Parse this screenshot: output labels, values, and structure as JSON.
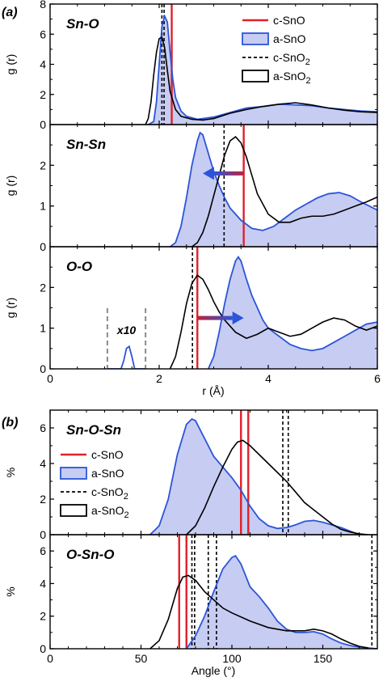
{
  "colors": {
    "c_SnO": "#e0202a",
    "a_SnO_line": "#2b55d9",
    "a_SnO_fill": "#c7ccf2",
    "c_SnO2": "#000000",
    "a_SnO2": "#000000",
    "inset": "#8a8a8a",
    "arrow": "#2b55d9",
    "arrow_tail": "#c0203a"
  },
  "chart_data": [
    {
      "type": "line",
      "panel_label": "(a)",
      "xlabel": "r (Å)",
      "ylabel": "g (r)",
      "xlim": [
        0,
        6
      ],
      "xticks": [
        "0",
        "2",
        "4",
        "6"
      ],
      "legend": {
        "placement": "top-right",
        "entries": [
          "c-SnO",
          "a-SnO",
          "c-SnO₂",
          "a-SnO₂"
        ]
      },
      "subplots": [
        {
          "title": "Sn-O",
          "ylim": [
            0,
            8
          ],
          "yticks": [
            "0",
            "2",
            "4",
            "6",
            "8"
          ],
          "vlines": {
            "c-SnO": [
              2.23
            ],
            "c-SnO₂": [
              2.05,
              2.09
            ]
          },
          "series": [
            {
              "name": "a-SnO",
              "fill": true,
              "x": [
                1.8,
                1.9,
                1.95,
                2.0,
                2.05,
                2.1,
                2.15,
                2.2,
                2.25,
                2.3,
                2.4,
                2.5,
                2.7,
                3.0,
                3.3,
                3.6,
                3.9,
                4.2,
                4.5,
                4.8,
                5.1,
                5.4,
                5.7,
                6.0
              ],
              "y": [
                0,
                0.2,
                1.5,
                4.0,
                6.5,
                7.2,
                6.8,
                4.8,
                3.0,
                1.8,
                0.9,
                0.55,
                0.35,
                0.5,
                0.8,
                1.1,
                1.2,
                1.35,
                1.3,
                1.25,
                1.1,
                1.0,
                0.9,
                0.85
              ]
            },
            {
              "name": "a-SnO₂",
              "fill": false,
              "x": [
                1.75,
                1.8,
                1.85,
                1.9,
                1.95,
                2.0,
                2.05,
                2.1,
                2.15,
                2.2,
                2.3,
                2.4,
                2.6,
                2.8,
                3.0,
                3.3,
                3.6,
                3.9,
                4.2,
                4.5,
                4.8,
                5.1,
                5.4,
                5.7,
                6.0
              ],
              "y": [
                0,
                0.4,
                1.5,
                3.3,
                4.8,
                5.7,
                5.8,
                5.1,
                3.6,
                2.2,
                1.0,
                0.55,
                0.35,
                0.3,
                0.4,
                0.75,
                1.0,
                1.2,
                1.35,
                1.45,
                1.3,
                1.1,
                0.95,
                0.85,
                0.8
              ]
            }
          ]
        },
        {
          "title": "Sn-Sn",
          "ylim": [
            0,
            3
          ],
          "yticks": [
            "0",
            "1",
            "2"
          ],
          "vlines": {
            "c-SnO": [
              3.55
            ],
            "c-SnO₂": [
              3.19
            ]
          },
          "arrow": {
            "from": 3.55,
            "to": 2.8,
            "y": 1.8
          },
          "series": [
            {
              "name": "a-SnO",
              "fill": true,
              "x": [
                2.2,
                2.3,
                2.4,
                2.5,
                2.6,
                2.7,
                2.75,
                2.8,
                2.9,
                3.0,
                3.1,
                3.2,
                3.3,
                3.5,
                3.7,
                3.9,
                4.1,
                4.3,
                4.5,
                4.7,
                4.9,
                5.1,
                5.3,
                5.5,
                5.7,
                6.0
              ],
              "y": [
                0,
                0.1,
                0.5,
                1.2,
                2.0,
                2.6,
                2.8,
                2.75,
                2.3,
                1.85,
                1.5,
                1.2,
                0.95,
                0.65,
                0.45,
                0.4,
                0.5,
                0.7,
                0.9,
                1.05,
                1.2,
                1.3,
                1.33,
                1.25,
                1.1,
                0.9
              ]
            },
            {
              "name": "a-SnO₂",
              "fill": false,
              "x": [
                2.6,
                2.7,
                2.8,
                2.9,
                3.0,
                3.1,
                3.2,
                3.3,
                3.4,
                3.5,
                3.6,
                3.7,
                3.8,
                4.0,
                4.2,
                4.4,
                4.6,
                4.8,
                5.0,
                5.2,
                5.4,
                5.6,
                5.8,
                6.0
              ],
              "y": [
                0,
                0.1,
                0.35,
                0.75,
                1.25,
                1.75,
                2.25,
                2.6,
                2.7,
                2.55,
                2.2,
                1.75,
                1.3,
                0.8,
                0.6,
                0.6,
                0.7,
                0.75,
                0.75,
                0.8,
                0.9,
                1.0,
                1.1,
                1.22
              ]
            }
          ]
        },
        {
          "title": "O-O",
          "ylim": [
            0,
            3
          ],
          "yticks": [
            "0",
            "1",
            "2"
          ],
          "vlines": {
            "c-SnO": [
              2.7
            ],
            "c-SnO₂": [
              2.61
            ]
          },
          "arrow": {
            "from": 2.7,
            "to": 3.55,
            "y": 1.25
          },
          "inset": {
            "label": "x10",
            "x": [
              1.05,
              1.75
            ]
          },
          "series": [
            {
              "name": "a-SnO",
              "fill": true,
              "x": [
                2.9,
                3.0,
                3.1,
                3.2,
                3.3,
                3.4,
                3.45,
                3.5,
                3.6,
                3.7,
                3.8,
                3.9,
                4.0,
                4.2,
                4.4,
                4.6,
                4.8,
                5.0,
                5.2,
                5.4,
                5.6,
                5.8,
                6.0
              ],
              "y": [
                0,
                0.3,
                0.9,
                1.6,
                2.2,
                2.65,
                2.75,
                2.65,
                2.2,
                1.8,
                1.5,
                1.2,
                1.0,
                0.8,
                0.6,
                0.5,
                0.45,
                0.5,
                0.65,
                0.8,
                0.95,
                1.1,
                1.15
              ]
            },
            {
              "name": "a-SnO₂",
              "fill": false,
              "x": [
                2.2,
                2.3,
                2.4,
                2.5,
                2.6,
                2.7,
                2.8,
                2.9,
                3.0,
                3.1,
                3.2,
                3.4,
                3.6,
                3.8,
                4.0,
                4.2,
                4.4,
                4.6,
                4.8,
                5.0,
                5.2,
                5.4,
                5.6,
                5.8,
                6.0
              ],
              "y": [
                0,
                0.3,
                0.9,
                1.6,
                2.1,
                2.3,
                2.2,
                1.95,
                1.65,
                1.4,
                1.2,
                0.9,
                0.75,
                0.85,
                1.0,
                0.9,
                0.8,
                0.85,
                1.0,
                1.15,
                1.25,
                1.2,
                1.05,
                0.95,
                1.05
              ]
            },
            {
              "name": "a-SnO (x10)",
              "fill": false,
              "color": "a_SnO_line",
              "x": [
                1.05,
                1.3,
                1.35,
                1.4,
                1.45,
                1.5,
                1.55,
                1.75
              ],
              "y": [
                0,
                0,
                0.2,
                0.5,
                0.55,
                0.3,
                0,
                0
              ]
            }
          ]
        }
      ]
    },
    {
      "type": "line",
      "panel_label": "(b)",
      "xlabel": "Angle (°)",
      "ylabel": "%",
      "xlim": [
        0,
        180
      ],
      "xticks": [
        "0",
        "50",
        "100",
        "150"
      ],
      "legend": {
        "placement": "top-left",
        "entries": [
          "c-SnO",
          "a-SnO",
          "c-SnO₂",
          "a-SnO₂"
        ]
      },
      "subplots": [
        {
          "title": "Sn-O-Sn",
          "ylim": [
            0,
            7
          ],
          "yticks": [
            "0",
            "2",
            "4",
            "6"
          ],
          "vlines": {
            "c-SnO": [
              105,
              109
            ],
            "c-SnO₂": [
              128,
              131
            ]
          },
          "series": [
            {
              "name": "a-SnO",
              "fill": true,
              "x": [
                55,
                60,
                65,
                70,
                75,
                78,
                80,
                85,
                90,
                95,
                100,
                105,
                110,
                115,
                120,
                125,
                130,
                135,
                140,
                145,
                150,
                155,
                160,
                165,
                170
              ],
              "y": [
                0,
                0.5,
                2.0,
                4.5,
                6.2,
                6.5,
                6.4,
                5.4,
                4.4,
                3.8,
                3.2,
                2.5,
                1.6,
                0.9,
                0.5,
                0.35,
                0.4,
                0.55,
                0.75,
                0.8,
                0.7,
                0.55,
                0.4,
                0.2,
                0
              ]
            },
            {
              "name": "a-SnO₂",
              "fill": false,
              "x": [
                75,
                80,
                85,
                90,
                95,
                100,
                103,
                106,
                110,
                115,
                120,
                125,
                130,
                135,
                140,
                145,
                150,
                155,
                160,
                165,
                170,
                175
              ],
              "y": [
                0,
                0.5,
                1.5,
                2.7,
                3.8,
                4.8,
                5.2,
                5.3,
                5.0,
                4.5,
                4.0,
                3.5,
                3.0,
                2.4,
                1.8,
                1.4,
                1.0,
                0.6,
                0.3,
                0.15,
                0.05,
                0
              ]
            }
          ]
        },
        {
          "title": "O-Sn-O",
          "ylim": [
            0,
            7
          ],
          "yticks": [
            "0",
            "2",
            "4",
            "6"
          ],
          "vlines": {
            "c-SnO": [
              71,
              75
            ],
            "c-SnO₂": [
              78,
              79.5,
              87,
              91.5,
              177
            ]
          },
          "series": [
            {
              "name": "a-SnO",
              "fill": true,
              "x": [
                75,
                80,
                85,
                90,
                95,
                100,
                102,
                105,
                110,
                115,
                120,
                125,
                130,
                135,
                140,
                145,
                150,
                155,
                160,
                165,
                170,
                175,
                180
              ],
              "y": [
                0,
                0.8,
                2.0,
                3.5,
                4.9,
                5.6,
                5.7,
                5.2,
                3.8,
                3.2,
                2.5,
                1.7,
                1.2,
                1.0,
                1.0,
                1.05,
                0.9,
                0.6,
                0.35,
                0.2,
                0.1,
                0.05,
                0
              ]
            },
            {
              "name": "a-SnO₂",
              "fill": false,
              "x": [
                55,
                60,
                65,
                70,
                73,
                76,
                80,
                85,
                90,
                95,
                100,
                110,
                120,
                130,
                140,
                145,
                150,
                155,
                160,
                165,
                170,
                175
              ],
              "y": [
                0,
                0.5,
                1.8,
                3.7,
                4.4,
                4.5,
                4.2,
                3.5,
                3.0,
                2.5,
                2.2,
                1.7,
                1.3,
                1.1,
                1.1,
                1.2,
                1.1,
                0.9,
                0.6,
                0.35,
                0.15,
                0.05
              ]
            }
          ]
        }
      ]
    }
  ]
}
